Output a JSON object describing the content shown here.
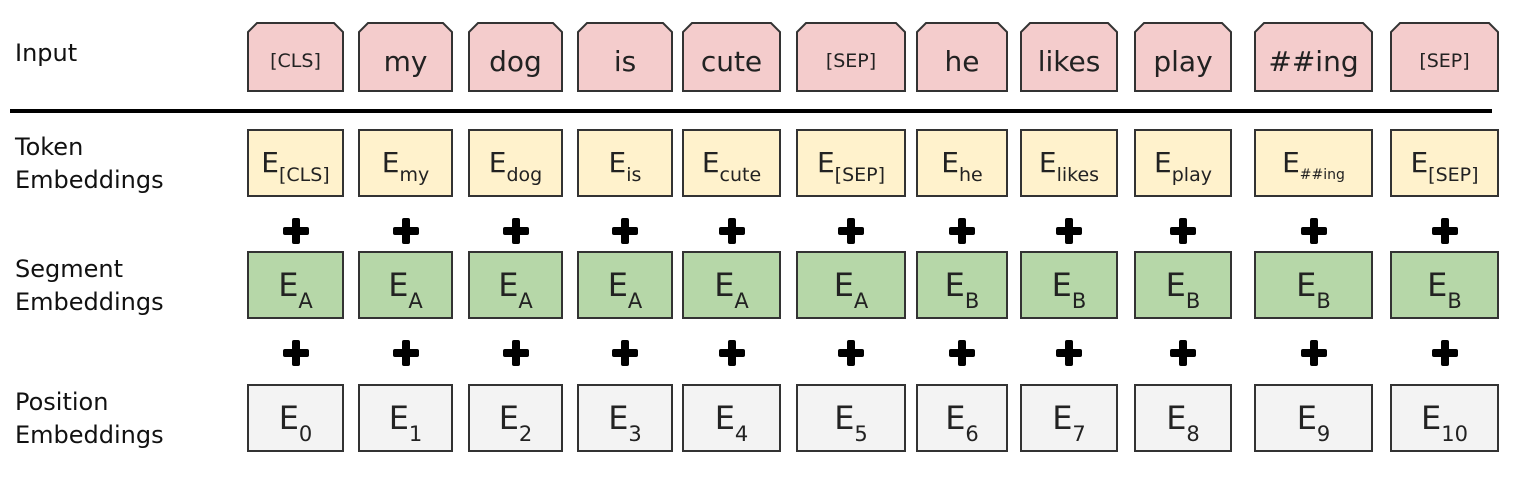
{
  "row_labels": {
    "input": "Input",
    "token": [
      "Token",
      "Embeddings"
    ],
    "segment": [
      "Segment",
      "Embeddings"
    ],
    "position": [
      "Position",
      "Embeddings"
    ]
  },
  "tokens": [
    "[CLS]",
    "my",
    "dog",
    "is",
    "cute",
    "[SEP]",
    "he",
    "likes",
    "play",
    "##ing",
    "[SEP]"
  ],
  "token_embeddings": {
    "base": "E",
    "subs": [
      "[CLS]",
      "my",
      "dog",
      "is",
      "cute",
      "[SEP]",
      "he",
      "likes",
      "play",
      "##ing",
      "[SEP]"
    ]
  },
  "segment_embeddings": {
    "base": "E",
    "subs": [
      "A",
      "A",
      "A",
      "A",
      "A",
      "A",
      "B",
      "B",
      "B",
      "B",
      "B"
    ]
  },
  "position_embeddings": {
    "base": "E",
    "subs": [
      "0",
      "1",
      "2",
      "3",
      "4",
      "5",
      "6",
      "7",
      "8",
      "9",
      "10"
    ]
  },
  "operator": "+",
  "colors": {
    "input": "#f4cccc",
    "token": "#fff2cc",
    "segment": "#b6d7a8",
    "position": "#f3f3f3",
    "border": "#333333"
  }
}
